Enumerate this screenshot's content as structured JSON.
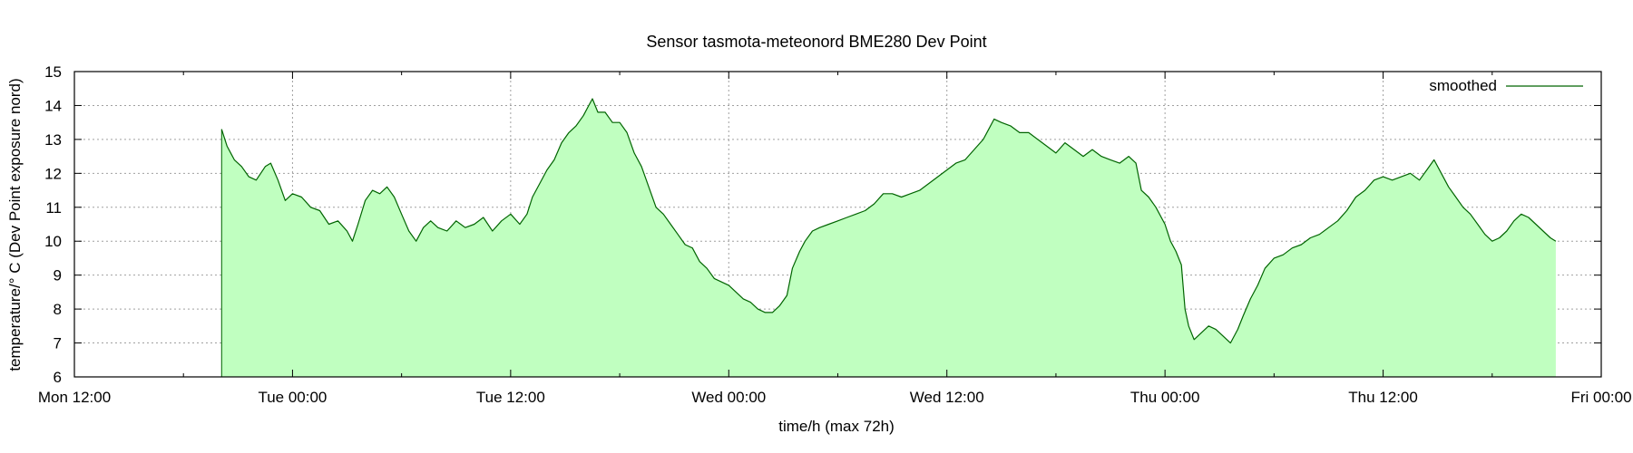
{
  "chart_data": {
    "type": "area",
    "title": "Sensor tasmota-meteonord BME280 Dev Point",
    "xlabel": "time/h (max 72h)",
    "ylabel": "temperature/° C (Dev Point exposure nord)",
    "xlim": [
      "Mon 12:00",
      "Fri 00:00"
    ],
    "ylim": [
      6,
      15
    ],
    "y_ticks": [
      6,
      7,
      8,
      9,
      10,
      11,
      12,
      13,
      14,
      15
    ],
    "x_ticks": [
      {
        "label": "Mon 12:00",
        "h": 0
      },
      {
        "label": "Tue 00:00",
        "h": 12
      },
      {
        "label": "Tue 12:00",
        "h": 24
      },
      {
        "label": "Wed 00:00",
        "h": 36
      },
      {
        "label": "Wed 12:00",
        "h": 48
      },
      {
        "label": "Thu 00:00",
        "h": 60
      },
      {
        "label": "Thu 12:00",
        "h": 72
      },
      {
        "label": "Fri 00:00",
        "h": 84
      }
    ],
    "grid": true,
    "legend": {
      "position": "top-right"
    },
    "colors": {
      "line": "#006400",
      "fill": "#c0ffc0"
    },
    "series": [
      {
        "name": "smoothed",
        "points": [
          [
            8.1,
            13.3
          ],
          [
            8.4,
            12.8
          ],
          [
            8.8,
            12.4
          ],
          [
            9.2,
            12.2
          ],
          [
            9.6,
            11.9
          ],
          [
            10.0,
            11.8
          ],
          [
            10.5,
            12.2
          ],
          [
            10.8,
            12.3
          ],
          [
            11.2,
            11.8
          ],
          [
            11.6,
            11.2
          ],
          [
            12.0,
            11.4
          ],
          [
            12.5,
            11.3
          ],
          [
            13.0,
            11.0
          ],
          [
            13.5,
            10.9
          ],
          [
            14.0,
            10.5
          ],
          [
            14.5,
            10.6
          ],
          [
            15.0,
            10.3
          ],
          [
            15.3,
            10.0
          ],
          [
            15.6,
            10.5
          ],
          [
            16.0,
            11.2
          ],
          [
            16.4,
            11.5
          ],
          [
            16.8,
            11.4
          ],
          [
            17.2,
            11.6
          ],
          [
            17.6,
            11.3
          ],
          [
            18.0,
            10.8
          ],
          [
            18.4,
            10.3
          ],
          [
            18.8,
            10.0
          ],
          [
            19.2,
            10.4
          ],
          [
            19.6,
            10.6
          ],
          [
            20.0,
            10.4
          ],
          [
            20.5,
            10.3
          ],
          [
            21.0,
            10.6
          ],
          [
            21.5,
            10.4
          ],
          [
            22.0,
            10.5
          ],
          [
            22.5,
            10.7
          ],
          [
            23.0,
            10.3
          ],
          [
            23.5,
            10.6
          ],
          [
            24.0,
            10.8
          ],
          [
            24.5,
            10.5
          ],
          [
            24.9,
            10.8
          ],
          [
            25.2,
            11.3
          ],
          [
            25.6,
            11.7
          ],
          [
            26.0,
            12.1
          ],
          [
            26.4,
            12.4
          ],
          [
            26.8,
            12.9
          ],
          [
            27.2,
            13.2
          ],
          [
            27.6,
            13.4
          ],
          [
            28.0,
            13.7
          ],
          [
            28.3,
            14.0
          ],
          [
            28.5,
            14.2
          ],
          [
            28.8,
            13.8
          ],
          [
            29.2,
            13.8
          ],
          [
            29.6,
            13.5
          ],
          [
            30.0,
            13.5
          ],
          [
            30.4,
            13.2
          ],
          [
            30.8,
            12.6
          ],
          [
            31.2,
            12.2
          ],
          [
            31.6,
            11.6
          ],
          [
            32.0,
            11.0
          ],
          [
            32.4,
            10.8
          ],
          [
            32.8,
            10.5
          ],
          [
            33.2,
            10.2
          ],
          [
            33.6,
            9.9
          ],
          [
            34.0,
            9.8
          ],
          [
            34.4,
            9.4
          ],
          [
            34.8,
            9.2
          ],
          [
            35.2,
            8.9
          ],
          [
            35.6,
            8.8
          ],
          [
            36.0,
            8.7
          ],
          [
            36.4,
            8.5
          ],
          [
            36.8,
            8.3
          ],
          [
            37.2,
            8.2
          ],
          [
            37.6,
            8.0
          ],
          [
            38.0,
            7.9
          ],
          [
            38.4,
            7.9
          ],
          [
            38.8,
            8.1
          ],
          [
            39.2,
            8.4
          ],
          [
            39.5,
            9.2
          ],
          [
            39.9,
            9.7
          ],
          [
            40.2,
            10.0
          ],
          [
            40.6,
            10.3
          ],
          [
            41.0,
            10.4
          ],
          [
            41.5,
            10.5
          ],
          [
            42.0,
            10.6
          ],
          [
            42.5,
            10.7
          ],
          [
            43.0,
            10.8
          ],
          [
            43.5,
            10.9
          ],
          [
            44.0,
            11.1
          ],
          [
            44.5,
            11.4
          ],
          [
            45.0,
            11.4
          ],
          [
            45.5,
            11.3
          ],
          [
            46.0,
            11.4
          ],
          [
            46.5,
            11.5
          ],
          [
            47.0,
            11.7
          ],
          [
            47.5,
            11.9
          ],
          [
            48.0,
            12.1
          ],
          [
            48.5,
            12.3
          ],
          [
            49.0,
            12.4
          ],
          [
            49.5,
            12.7
          ],
          [
            50.0,
            13.0
          ],
          [
            50.3,
            13.3
          ],
          [
            50.6,
            13.6
          ],
          [
            51.0,
            13.5
          ],
          [
            51.5,
            13.4
          ],
          [
            52.0,
            13.2
          ],
          [
            52.5,
            13.2
          ],
          [
            53.0,
            13.0
          ],
          [
            53.5,
            12.8
          ],
          [
            54.0,
            12.6
          ],
          [
            54.5,
            12.9
          ],
          [
            55.0,
            12.7
          ],
          [
            55.5,
            12.5
          ],
          [
            56.0,
            12.7
          ],
          [
            56.5,
            12.5
          ],
          [
            57.0,
            12.4
          ],
          [
            57.5,
            12.3
          ],
          [
            58.0,
            12.5
          ],
          [
            58.4,
            12.3
          ],
          [
            58.7,
            11.5
          ],
          [
            59.1,
            11.3
          ],
          [
            59.5,
            11.0
          ],
          [
            60.0,
            10.5
          ],
          [
            60.3,
            10.0
          ],
          [
            60.6,
            9.7
          ],
          [
            60.9,
            9.3
          ],
          [
            61.1,
            8.0
          ],
          [
            61.3,
            7.5
          ],
          [
            61.6,
            7.1
          ],
          [
            62.0,
            7.3
          ],
          [
            62.4,
            7.5
          ],
          [
            62.8,
            7.4
          ],
          [
            63.2,
            7.2
          ],
          [
            63.6,
            7.0
          ],
          [
            64.0,
            7.4
          ],
          [
            64.3,
            7.8
          ],
          [
            64.7,
            8.3
          ],
          [
            65.1,
            8.7
          ],
          [
            65.5,
            9.2
          ],
          [
            66.0,
            9.5
          ],
          [
            66.5,
            9.6
          ],
          [
            67.0,
            9.8
          ],
          [
            67.5,
            9.9
          ],
          [
            68.0,
            10.1
          ],
          [
            68.5,
            10.2
          ],
          [
            69.0,
            10.4
          ],
          [
            69.5,
            10.6
          ],
          [
            70.0,
            10.9
          ],
          [
            70.5,
            11.3
          ],
          [
            71.0,
            11.5
          ],
          [
            71.5,
            11.8
          ],
          [
            72.0,
            11.9
          ],
          [
            72.5,
            11.8
          ],
          [
            73.0,
            11.9
          ],
          [
            73.5,
            12.0
          ],
          [
            74.0,
            11.8
          ],
          [
            74.4,
            12.1
          ],
          [
            74.8,
            12.4
          ],
          [
            75.2,
            12.0
          ],
          [
            75.6,
            11.6
          ],
          [
            76.0,
            11.3
          ],
          [
            76.4,
            11.0
          ],
          [
            76.8,
            10.8
          ],
          [
            77.2,
            10.5
          ],
          [
            77.6,
            10.2
          ],
          [
            78.0,
            10.0
          ],
          [
            78.4,
            10.1
          ],
          [
            78.8,
            10.3
          ],
          [
            79.2,
            10.6
          ],
          [
            79.6,
            10.8
          ],
          [
            80.0,
            10.7
          ],
          [
            80.4,
            10.5
          ],
          [
            80.8,
            10.3
          ],
          [
            81.2,
            10.1
          ],
          [
            81.5,
            10.0
          ]
        ]
      }
    ]
  }
}
